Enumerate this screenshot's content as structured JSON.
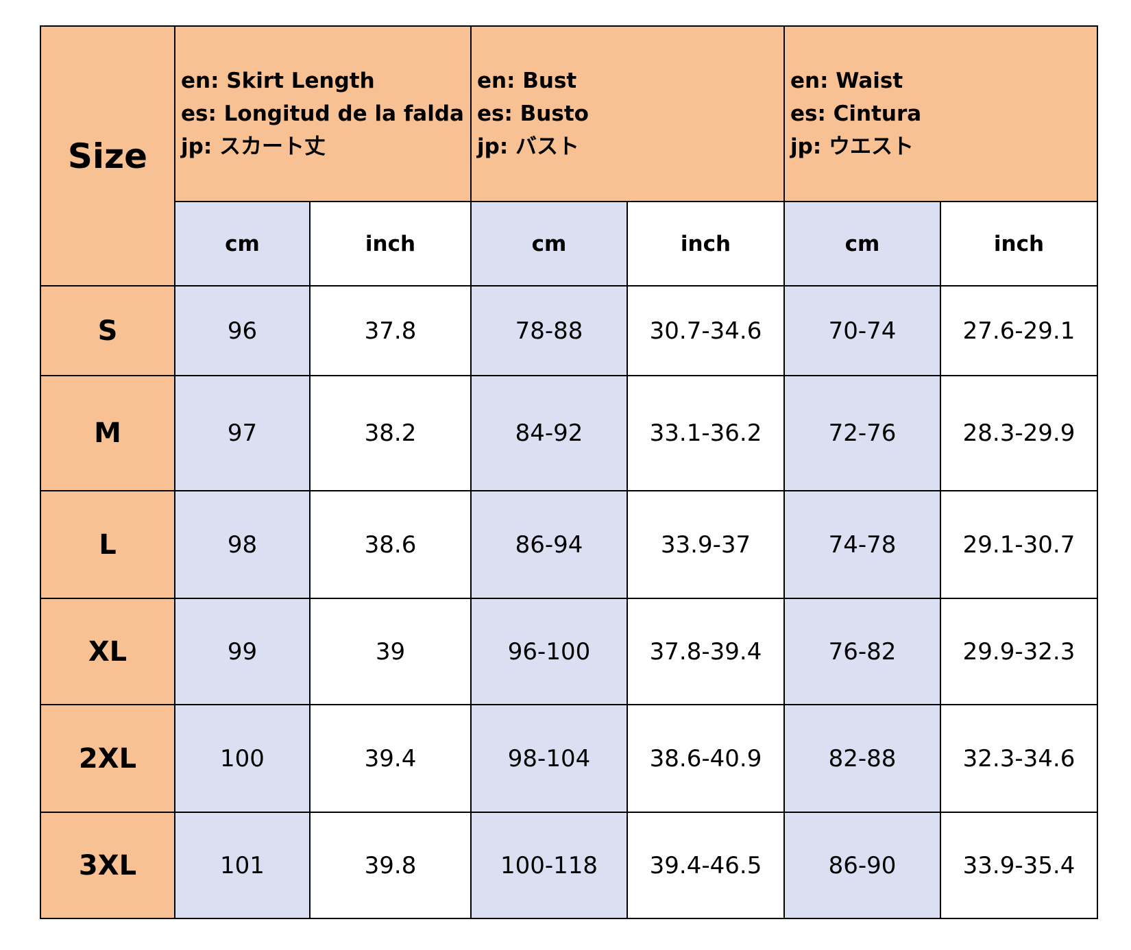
{
  "header": {
    "size": "Size",
    "groups": [
      {
        "lines": [
          "en: Skirt Length",
          "es: Longitud de la falda",
          "jp: スカート丈"
        ]
      },
      {
        "lines": [
          "en: Bust",
          "es: Busto",
          "jp: バスト"
        ]
      },
      {
        "lines": [
          "en: Waist",
          "es: Cintura",
          "jp: ウエスト"
        ]
      }
    ],
    "units": [
      "cm",
      "inch",
      "cm",
      "inch",
      "cm",
      "inch"
    ]
  },
  "rows": [
    {
      "size": "S",
      "cells": [
        "96",
        "37.8",
        "78-88",
        "30.7-34.6",
        "70-74",
        "27.6-29.1"
      ]
    },
    {
      "size": "M",
      "cells": [
        "97",
        "38.2",
        "84-92",
        "33.1-36.2",
        "72-76",
        "28.3-29.9"
      ]
    },
    {
      "size": "L",
      "cells": [
        "98",
        "38.6",
        "86-94",
        "33.9-37",
        "74-78",
        "29.1-30.7"
      ]
    },
    {
      "size": "XL",
      "cells": [
        "99",
        "39",
        "96-100",
        "37.8-39.4",
        "76-82",
        "29.9-32.3"
      ]
    },
    {
      "size": "2XL",
      "cells": [
        "100",
        "39.4",
        "98-104",
        "38.6-40.9",
        "82-88",
        "32.3-34.6"
      ]
    },
    {
      "size": "3XL",
      "cells": [
        "101",
        "39.8",
        "100-118",
        "39.4-46.5",
        "86-90",
        "33.9-35.4"
      ]
    }
  ]
}
